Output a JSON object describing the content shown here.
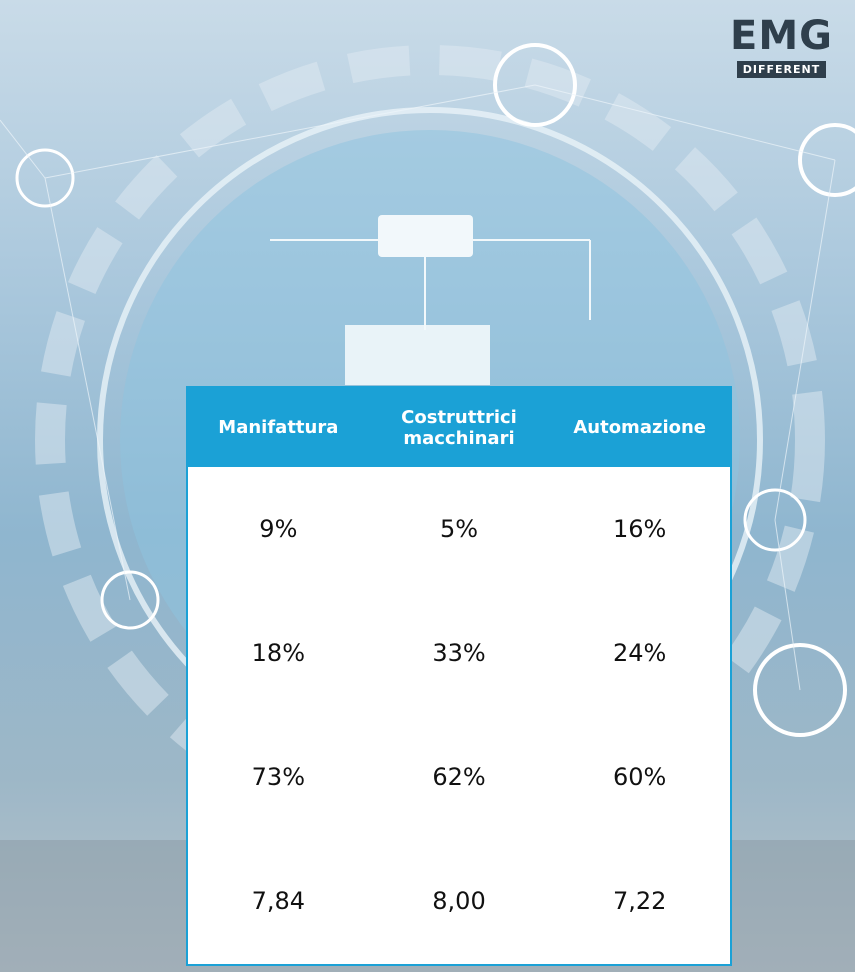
{
  "logo": {
    "title": "EMG",
    "subtitle": "DIFFERENT"
  },
  "table": {
    "header": [
      "Manifattura",
      "Costruttrici macchinari",
      "Automazione"
    ],
    "rows": [
      [
        "9%",
        "5%",
        "16%"
      ],
      [
        "18%",
        "33%",
        "24%"
      ],
      [
        "73%",
        "62%",
        "60%"
      ],
      [
        "7,84",
        "8,00",
        "7,22"
      ]
    ]
  }
}
